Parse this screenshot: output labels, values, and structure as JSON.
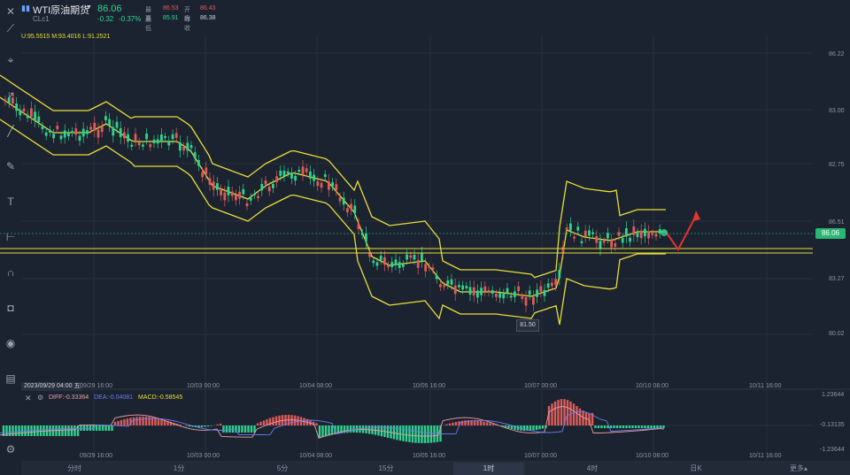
{
  "header": {
    "symbol": "WTI原油期货",
    "code": "CLc1",
    "price": "86.06",
    "change": "-0.32",
    "change_pct": "-0.37%",
    "high_label": "最高",
    "high": "86.53",
    "open_label": "开盘",
    "open": "86.43",
    "low_label": "最低",
    "low": "85.91",
    "prev_close_label": "昨收",
    "prev_close": "86.38",
    "bollinger": "U:95.5515   M:93.4016   L:91.2521"
  },
  "price_axis": [
    "86.22",
    "83.00",
    "82.75",
    "86.51",
    "86.06",
    "83.27",
    "80.02"
  ],
  "price_tag": "86.06",
  "low_tag": "81.50",
  "crosshair_date": "2023/09/29 04:00 五",
  "main_x_ticks": [
    "09/29 16:00",
    "10/03 00:00",
    "10/04 08:00",
    "10/05 16:00",
    "10/07 00:00",
    "10/10 08:00",
    "10/11 16:00"
  ],
  "macd": {
    "diff": "DIFF:-0.33364",
    "dea": "DEA:-0.04081",
    "macd": "MACD:-0.58545",
    "axis": [
      "1.23644",
      "-0.13135",
      "-1.23644"
    ]
  },
  "timeframes": [
    "分时",
    "1分",
    "5分",
    "15分",
    "1时",
    "4时",
    "日K",
    "更多▴"
  ],
  "active_timeframe": "1时",
  "colors": {
    "up": "#e05a5a",
    "down": "#2fd38f",
    "band": "#e6dd3a",
    "diff": "#e9a0a0",
    "dea": "#6a7cf0"
  },
  "icons": [
    "close-icon",
    "pencil-icon",
    "cursor-icon",
    "arrow-up-icon",
    "line-icon",
    "brush-icon",
    "text-icon",
    "measure-icon",
    "magnet-icon",
    "lock-icon",
    "eye-icon",
    "trash-icon",
    "settings-icon"
  ]
}
